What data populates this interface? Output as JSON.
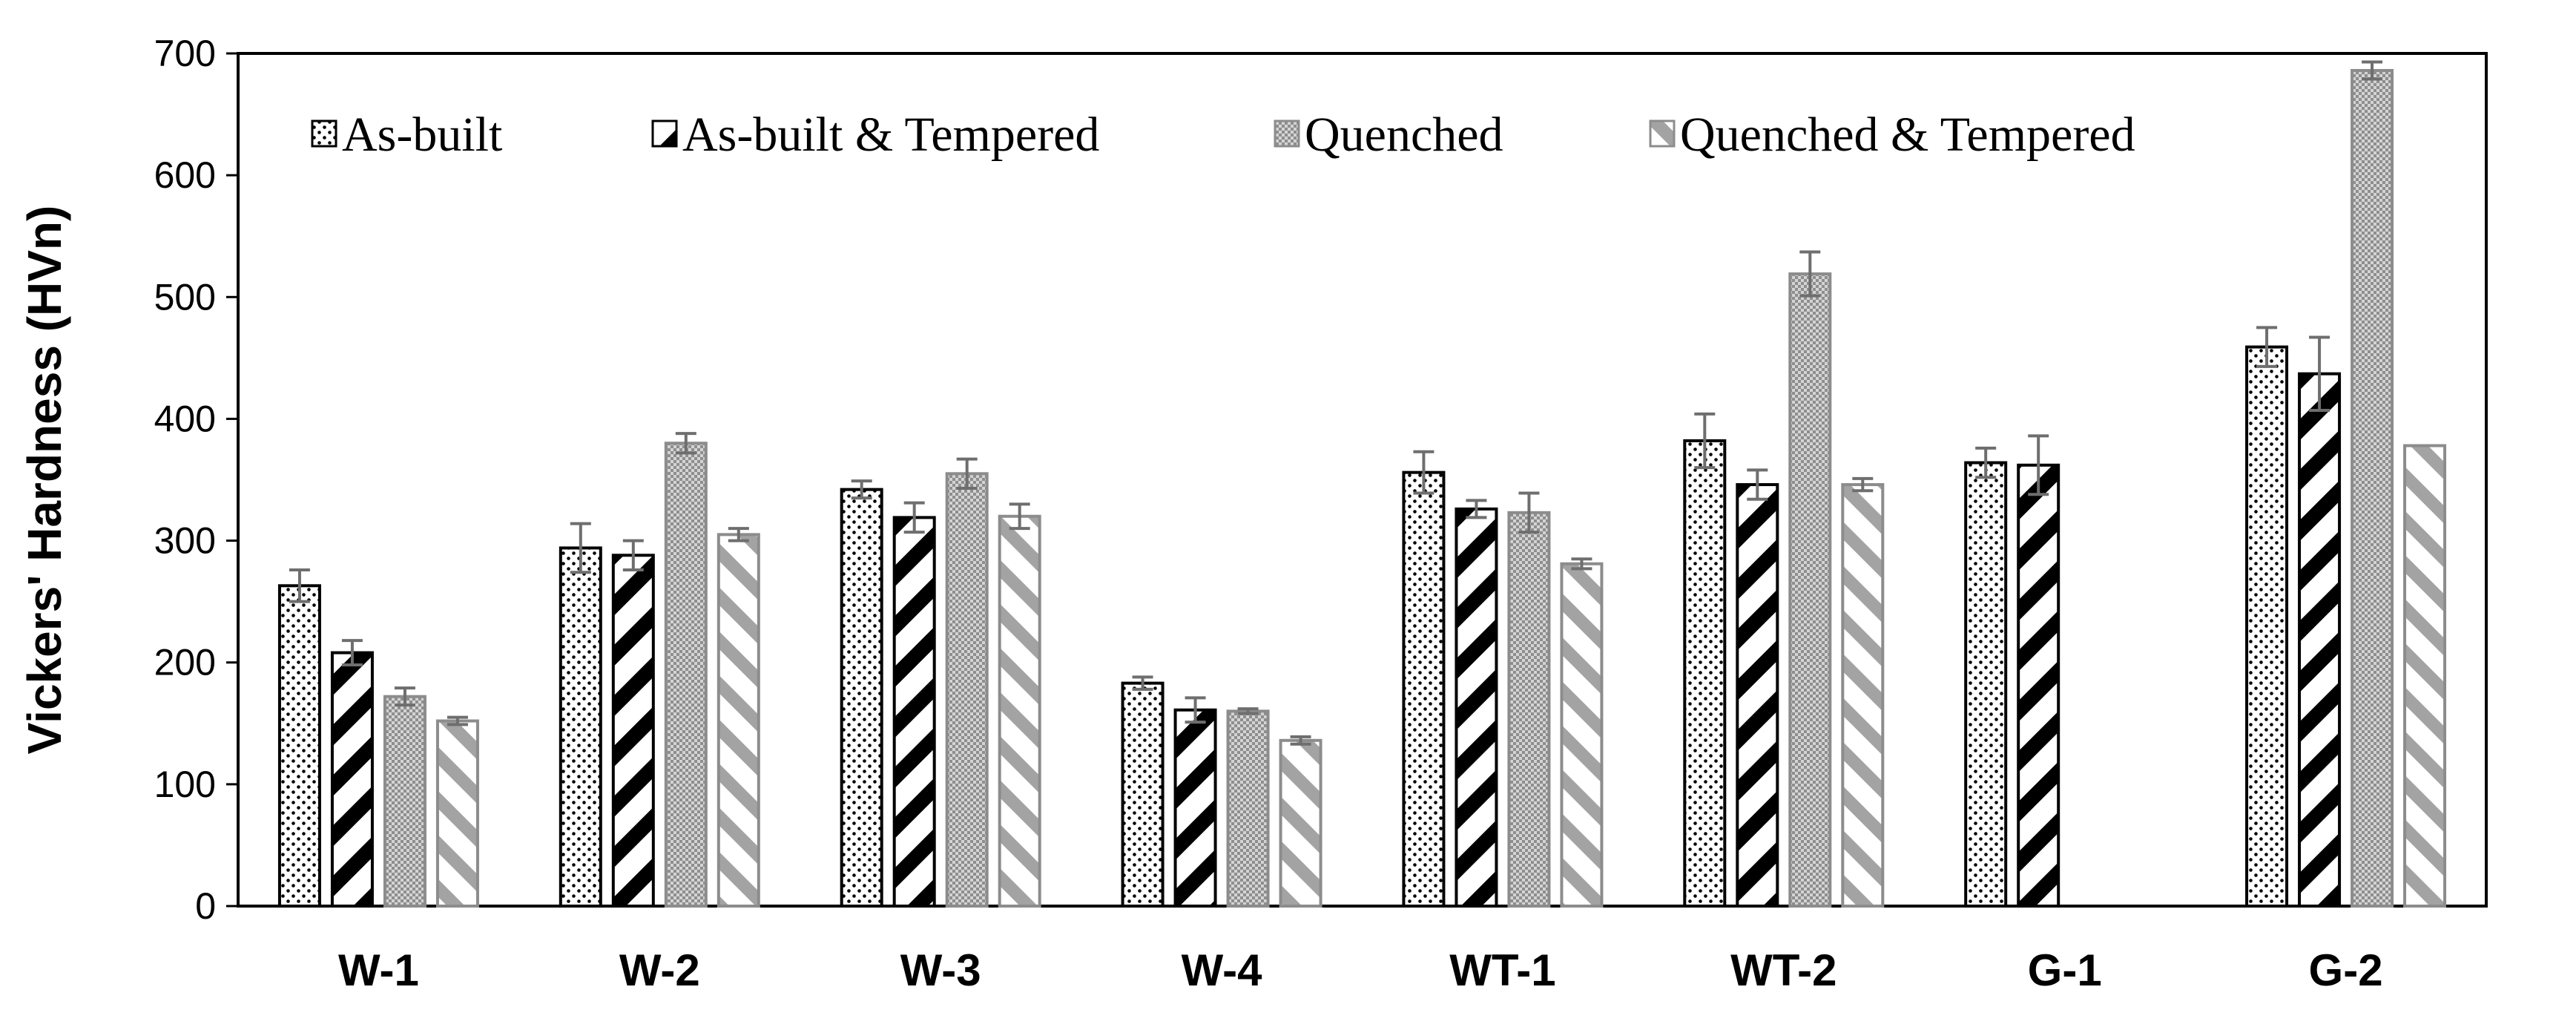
{
  "chart_data": {
    "type": "bar",
    "title": "",
    "xlabel": "",
    "ylabel": "Vickers' Hardness (HVn)",
    "ylim": [
      0,
      700
    ],
    "yticks": [
      "0",
      "100",
      "200",
      "300",
      "400",
      "500",
      "600",
      "700"
    ],
    "grid": false,
    "legend_position": "top, inside plot, single row",
    "categories": [
      "W-1",
      "W-2",
      "W-3",
      "W-4",
      "WT-1",
      "WT-2",
      "G-1",
      "G-2"
    ],
    "series": [
      {
        "name": "As-built",
        "pattern": "dots",
        "values": [
          263,
          294,
          342,
          183,
          356,
          382,
          364,
          459
        ],
        "errors": [
          13,
          20,
          7,
          5,
          17,
          22,
          12,
          16
        ]
      },
      {
        "name": "As-built & Tempered",
        "pattern": "black-diagonal-stripes",
        "values": [
          208,
          288,
          319,
          161,
          326,
          346,
          362,
          437
        ],
        "errors": [
          10,
          12,
          12,
          10,
          7,
          12,
          24,
          30
        ]
      },
      {
        "name": "Quenched",
        "pattern": "gray-checker",
        "values": [
          172,
          380,
          355,
          160,
          323,
          519,
          null,
          686
        ],
        "errors": [
          7,
          8,
          12,
          2,
          16,
          18,
          null,
          7
        ]
      },
      {
        "name": "Quenched & Tempered",
        "pattern": "gray-diagonal-stripes",
        "values": [
          152,
          305,
          320,
          136,
          281,
          346,
          null,
          378
        ],
        "errors": [
          3,
          5,
          10,
          3,
          4,
          5,
          null,
          0
        ]
      }
    ],
    "colors": {
      "axis": "#000000",
      "bar_outline_dark": "#000000",
      "bar_outline_gray": "#8c8c8c",
      "error_bar": "#6e6e6e"
    }
  }
}
